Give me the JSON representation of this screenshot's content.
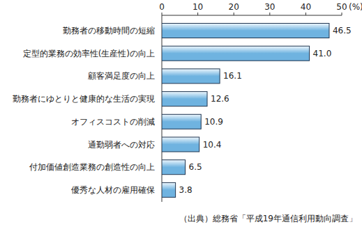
{
  "chart_data": {
    "type": "bar",
    "orientation": "horizontal",
    "categories": [
      "勤務者の移動時間の短縮",
      "定型的業務の効率性(生産性)の向上",
      "顧客満足度の向上",
      "勤務者にゆとりと健康的な生活の実現",
      "オフィスコストの削減",
      "通勤弱者への対応",
      "付加価値創造業務の創造性の向上",
      "優秀な人材の雇用確保"
    ],
    "values": [
      46.5,
      41.0,
      16.1,
      12.6,
      10.9,
      10.4,
      6.5,
      3.8
    ],
    "value_labels": [
      "46.5",
      "41.0",
      "16.1",
      "12.6",
      "10.9",
      "10.4",
      "6.5",
      "3.8"
    ],
    "data_labels": true,
    "color": "#6fb3e0",
    "xlim": [
      0,
      50
    ],
    "xticks": [
      0,
      10,
      20,
      30,
      40,
      50
    ],
    "xlabel": "(%)",
    "grid": false,
    "source": "（出典）総務省「平成19年通信利用動向調査」"
  }
}
